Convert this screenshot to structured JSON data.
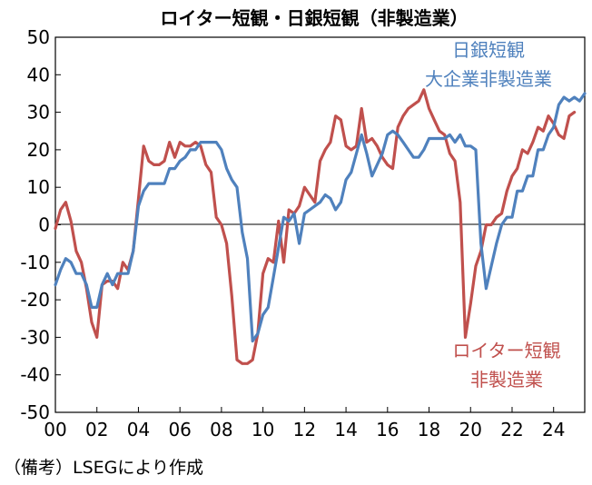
{
  "chart_data": {
    "type": "line",
    "title": "ロイター短観・日銀短観（非製造業）",
    "xlabel": "",
    "ylabel": "",
    "ylim": [
      -50,
      50
    ],
    "xlim": [
      2000,
      2025.5
    ],
    "yticks": [
      50,
      40,
      30,
      20,
      10,
      0,
      -10,
      -20,
      -30,
      -40,
      -50
    ],
    "xtick_labels": [
      "00",
      "02",
      "04",
      "06",
      "08",
      "10",
      "12",
      "14",
      "16",
      "18",
      "20",
      "22",
      "24"
    ],
    "xticks": [
      2000,
      2002,
      2004,
      2006,
      2008,
      2010,
      2012,
      2014,
      2016,
      2018,
      2020,
      2022,
      2024
    ],
    "grid": false,
    "zero_line": true,
    "series": [
      {
        "name": "日銀短観 大企業非製造業",
        "name_lines": [
          "日銀短観",
          "大企業非製造業"
        ],
        "color": "#4f81bd",
        "points": [
          [
            2000.0,
            -16
          ],
          [
            2000.25,
            -12
          ],
          [
            2000.5,
            -9
          ],
          [
            2000.75,
            -10
          ],
          [
            2001.0,
            -13
          ],
          [
            2001.25,
            -13
          ],
          [
            2001.5,
            -16
          ],
          [
            2001.75,
            -22
          ],
          [
            2002.0,
            -22
          ],
          [
            2002.25,
            -16
          ],
          [
            2002.5,
            -13
          ],
          [
            2002.75,
            -16
          ],
          [
            2003.0,
            -13
          ],
          [
            2003.25,
            -13
          ],
          [
            2003.5,
            -13
          ],
          [
            2003.75,
            -7
          ],
          [
            2004.0,
            5
          ],
          [
            2004.25,
            9
          ],
          [
            2004.5,
            11
          ],
          [
            2004.75,
            11
          ],
          [
            2005.0,
            11
          ],
          [
            2005.25,
            11
          ],
          [
            2005.5,
            15
          ],
          [
            2005.75,
            15
          ],
          [
            2006.0,
            17
          ],
          [
            2006.25,
            18
          ],
          [
            2006.5,
            20
          ],
          [
            2006.75,
            20
          ],
          [
            2007.0,
            22
          ],
          [
            2007.25,
            22
          ],
          [
            2007.5,
            22
          ],
          [
            2007.75,
            22
          ],
          [
            2008.0,
            20
          ],
          [
            2008.25,
            15
          ],
          [
            2008.5,
            12
          ],
          [
            2008.75,
            10
          ],
          [
            2009.0,
            -2
          ],
          [
            2009.25,
            -9
          ],
          [
            2009.5,
            -31
          ],
          [
            2009.75,
            -29
          ],
          [
            2010.0,
            -24
          ],
          [
            2010.25,
            -22
          ],
          [
            2010.5,
            -14
          ],
          [
            2010.75,
            -6
          ],
          [
            2011.0,
            2
          ],
          [
            2011.25,
            1
          ],
          [
            2011.5,
            3
          ],
          [
            2011.75,
            -5
          ],
          [
            2012.0,
            3
          ],
          [
            2012.25,
            4
          ],
          [
            2012.5,
            5
          ],
          [
            2012.75,
            6
          ],
          [
            2013.0,
            8
          ],
          [
            2013.25,
            7
          ],
          [
            2013.5,
            4
          ],
          [
            2013.75,
            6
          ],
          [
            2014.0,
            12
          ],
          [
            2014.25,
            14
          ],
          [
            2014.5,
            19
          ],
          [
            2014.75,
            24
          ],
          [
            2015.0,
            19
          ],
          [
            2015.25,
            13
          ],
          [
            2015.5,
            16
          ],
          [
            2015.75,
            19
          ],
          [
            2016.0,
            24
          ],
          [
            2016.25,
            25
          ],
          [
            2016.5,
            24
          ],
          [
            2016.75,
            22
          ],
          [
            2017.0,
            20
          ],
          [
            2017.25,
            18
          ],
          [
            2017.5,
            18
          ],
          [
            2017.75,
            20
          ],
          [
            2018.0,
            23
          ],
          [
            2018.25,
            23
          ],
          [
            2018.5,
            23
          ],
          [
            2018.75,
            23
          ],
          [
            2019.0,
            24
          ],
          [
            2019.25,
            22
          ],
          [
            2019.5,
            24
          ],
          [
            2019.75,
            21
          ],
          [
            2020.0,
            21
          ],
          [
            2020.25,
            20
          ],
          [
            2020.5,
            -5
          ],
          [
            2020.75,
            -17
          ],
          [
            2021.0,
            -11
          ],
          [
            2021.25,
            -5
          ],
          [
            2021.5,
            0
          ],
          [
            2021.75,
            2
          ],
          [
            2022.0,
            2
          ],
          [
            2022.25,
            9
          ],
          [
            2022.5,
            9
          ],
          [
            2022.75,
            13
          ],
          [
            2023.0,
            13
          ],
          [
            2023.25,
            20
          ],
          [
            2023.5,
            20
          ],
          [
            2023.75,
            24
          ],
          [
            2024.0,
            26
          ],
          [
            2024.25,
            32
          ],
          [
            2024.5,
            34
          ],
          [
            2024.75,
            33
          ],
          [
            2025.0,
            34
          ],
          [
            2025.25,
            33
          ],
          [
            2025.5,
            35
          ]
        ]
      },
      {
        "name": "ロイター短観 非製造業",
        "name_lines": [
          "ロイター短観",
          "非製造業"
        ],
        "color": "#c0504d",
        "points": [
          [
            2000.0,
            -1
          ],
          [
            2000.25,
            4
          ],
          [
            2000.5,
            6
          ],
          [
            2000.75,
            1
          ],
          [
            2001.0,
            -7
          ],
          [
            2001.25,
            -10
          ],
          [
            2001.5,
            -17
          ],
          [
            2001.75,
            -26
          ],
          [
            2002.0,
            -30
          ],
          [
            2002.25,
            -16
          ],
          [
            2002.5,
            -15
          ],
          [
            2002.75,
            -15
          ],
          [
            2003.0,
            -17
          ],
          [
            2003.25,
            -10
          ],
          [
            2003.5,
            -12
          ],
          [
            2003.75,
            -7
          ],
          [
            2004.0,
            7
          ],
          [
            2004.25,
            21
          ],
          [
            2004.5,
            17
          ],
          [
            2004.75,
            16
          ],
          [
            2005.0,
            16
          ],
          [
            2005.25,
            17
          ],
          [
            2005.5,
            22
          ],
          [
            2005.75,
            18
          ],
          [
            2006.0,
            22
          ],
          [
            2006.25,
            21
          ],
          [
            2006.5,
            21
          ],
          [
            2006.75,
            22
          ],
          [
            2007.0,
            21
          ],
          [
            2007.25,
            16
          ],
          [
            2007.5,
            14
          ],
          [
            2007.75,
            2
          ],
          [
            2008.0,
            0
          ],
          [
            2008.25,
            -5
          ],
          [
            2008.5,
            -19
          ],
          [
            2008.75,
            -36
          ],
          [
            2009.0,
            -37
          ],
          [
            2009.25,
            -37
          ],
          [
            2009.5,
            -36
          ],
          [
            2009.75,
            -29
          ],
          [
            2010.0,
            -13
          ],
          [
            2010.25,
            -9
          ],
          [
            2010.5,
            -10
          ],
          [
            2010.75,
            1
          ],
          [
            2011.0,
            -10
          ],
          [
            2011.25,
            4
          ],
          [
            2011.5,
            3
          ],
          [
            2011.75,
            5
          ],
          [
            2012.0,
            10
          ],
          [
            2012.25,
            8
          ],
          [
            2012.5,
            6
          ],
          [
            2012.75,
            17
          ],
          [
            2013.0,
            20
          ],
          [
            2013.25,
            22
          ],
          [
            2013.5,
            29
          ],
          [
            2013.75,
            28
          ],
          [
            2014.0,
            21
          ],
          [
            2014.25,
            20
          ],
          [
            2014.5,
            21
          ],
          [
            2014.75,
            31
          ],
          [
            2015.0,
            22
          ],
          [
            2015.25,
            23
          ],
          [
            2015.5,
            21
          ],
          [
            2015.75,
            18
          ],
          [
            2016.0,
            16
          ],
          [
            2016.25,
            15
          ],
          [
            2016.5,
            26
          ],
          [
            2016.75,
            29
          ],
          [
            2017.0,
            31
          ],
          [
            2017.25,
            32
          ],
          [
            2017.5,
            33
          ],
          [
            2017.75,
            36
          ],
          [
            2018.0,
            31
          ],
          [
            2018.25,
            28
          ],
          [
            2018.5,
            25
          ],
          [
            2018.75,
            24
          ],
          [
            2019.0,
            19
          ],
          [
            2019.25,
            17
          ],
          [
            2019.5,
            6
          ],
          [
            2019.75,
            -30
          ],
          [
            2020.0,
            -21
          ],
          [
            2020.25,
            -11
          ],
          [
            2020.5,
            -7
          ],
          [
            2020.75,
            0
          ],
          [
            2021.0,
            0
          ],
          [
            2021.25,
            2
          ],
          [
            2021.5,
            3
          ],
          [
            2021.75,
            9
          ],
          [
            2022.0,
            13
          ],
          [
            2022.25,
            15
          ],
          [
            2022.5,
            20
          ],
          [
            2022.75,
            19
          ],
          [
            2023.0,
            22
          ],
          [
            2023.25,
            26
          ],
          [
            2023.5,
            25
          ],
          [
            2023.75,
            29
          ],
          [
            2024.0,
            27
          ],
          [
            2024.25,
            24
          ],
          [
            2024.5,
            23
          ],
          [
            2024.75,
            29
          ],
          [
            2025.0,
            30
          ]
        ]
      }
    ],
    "source_note": "（備考）LSEGにより作成"
  }
}
